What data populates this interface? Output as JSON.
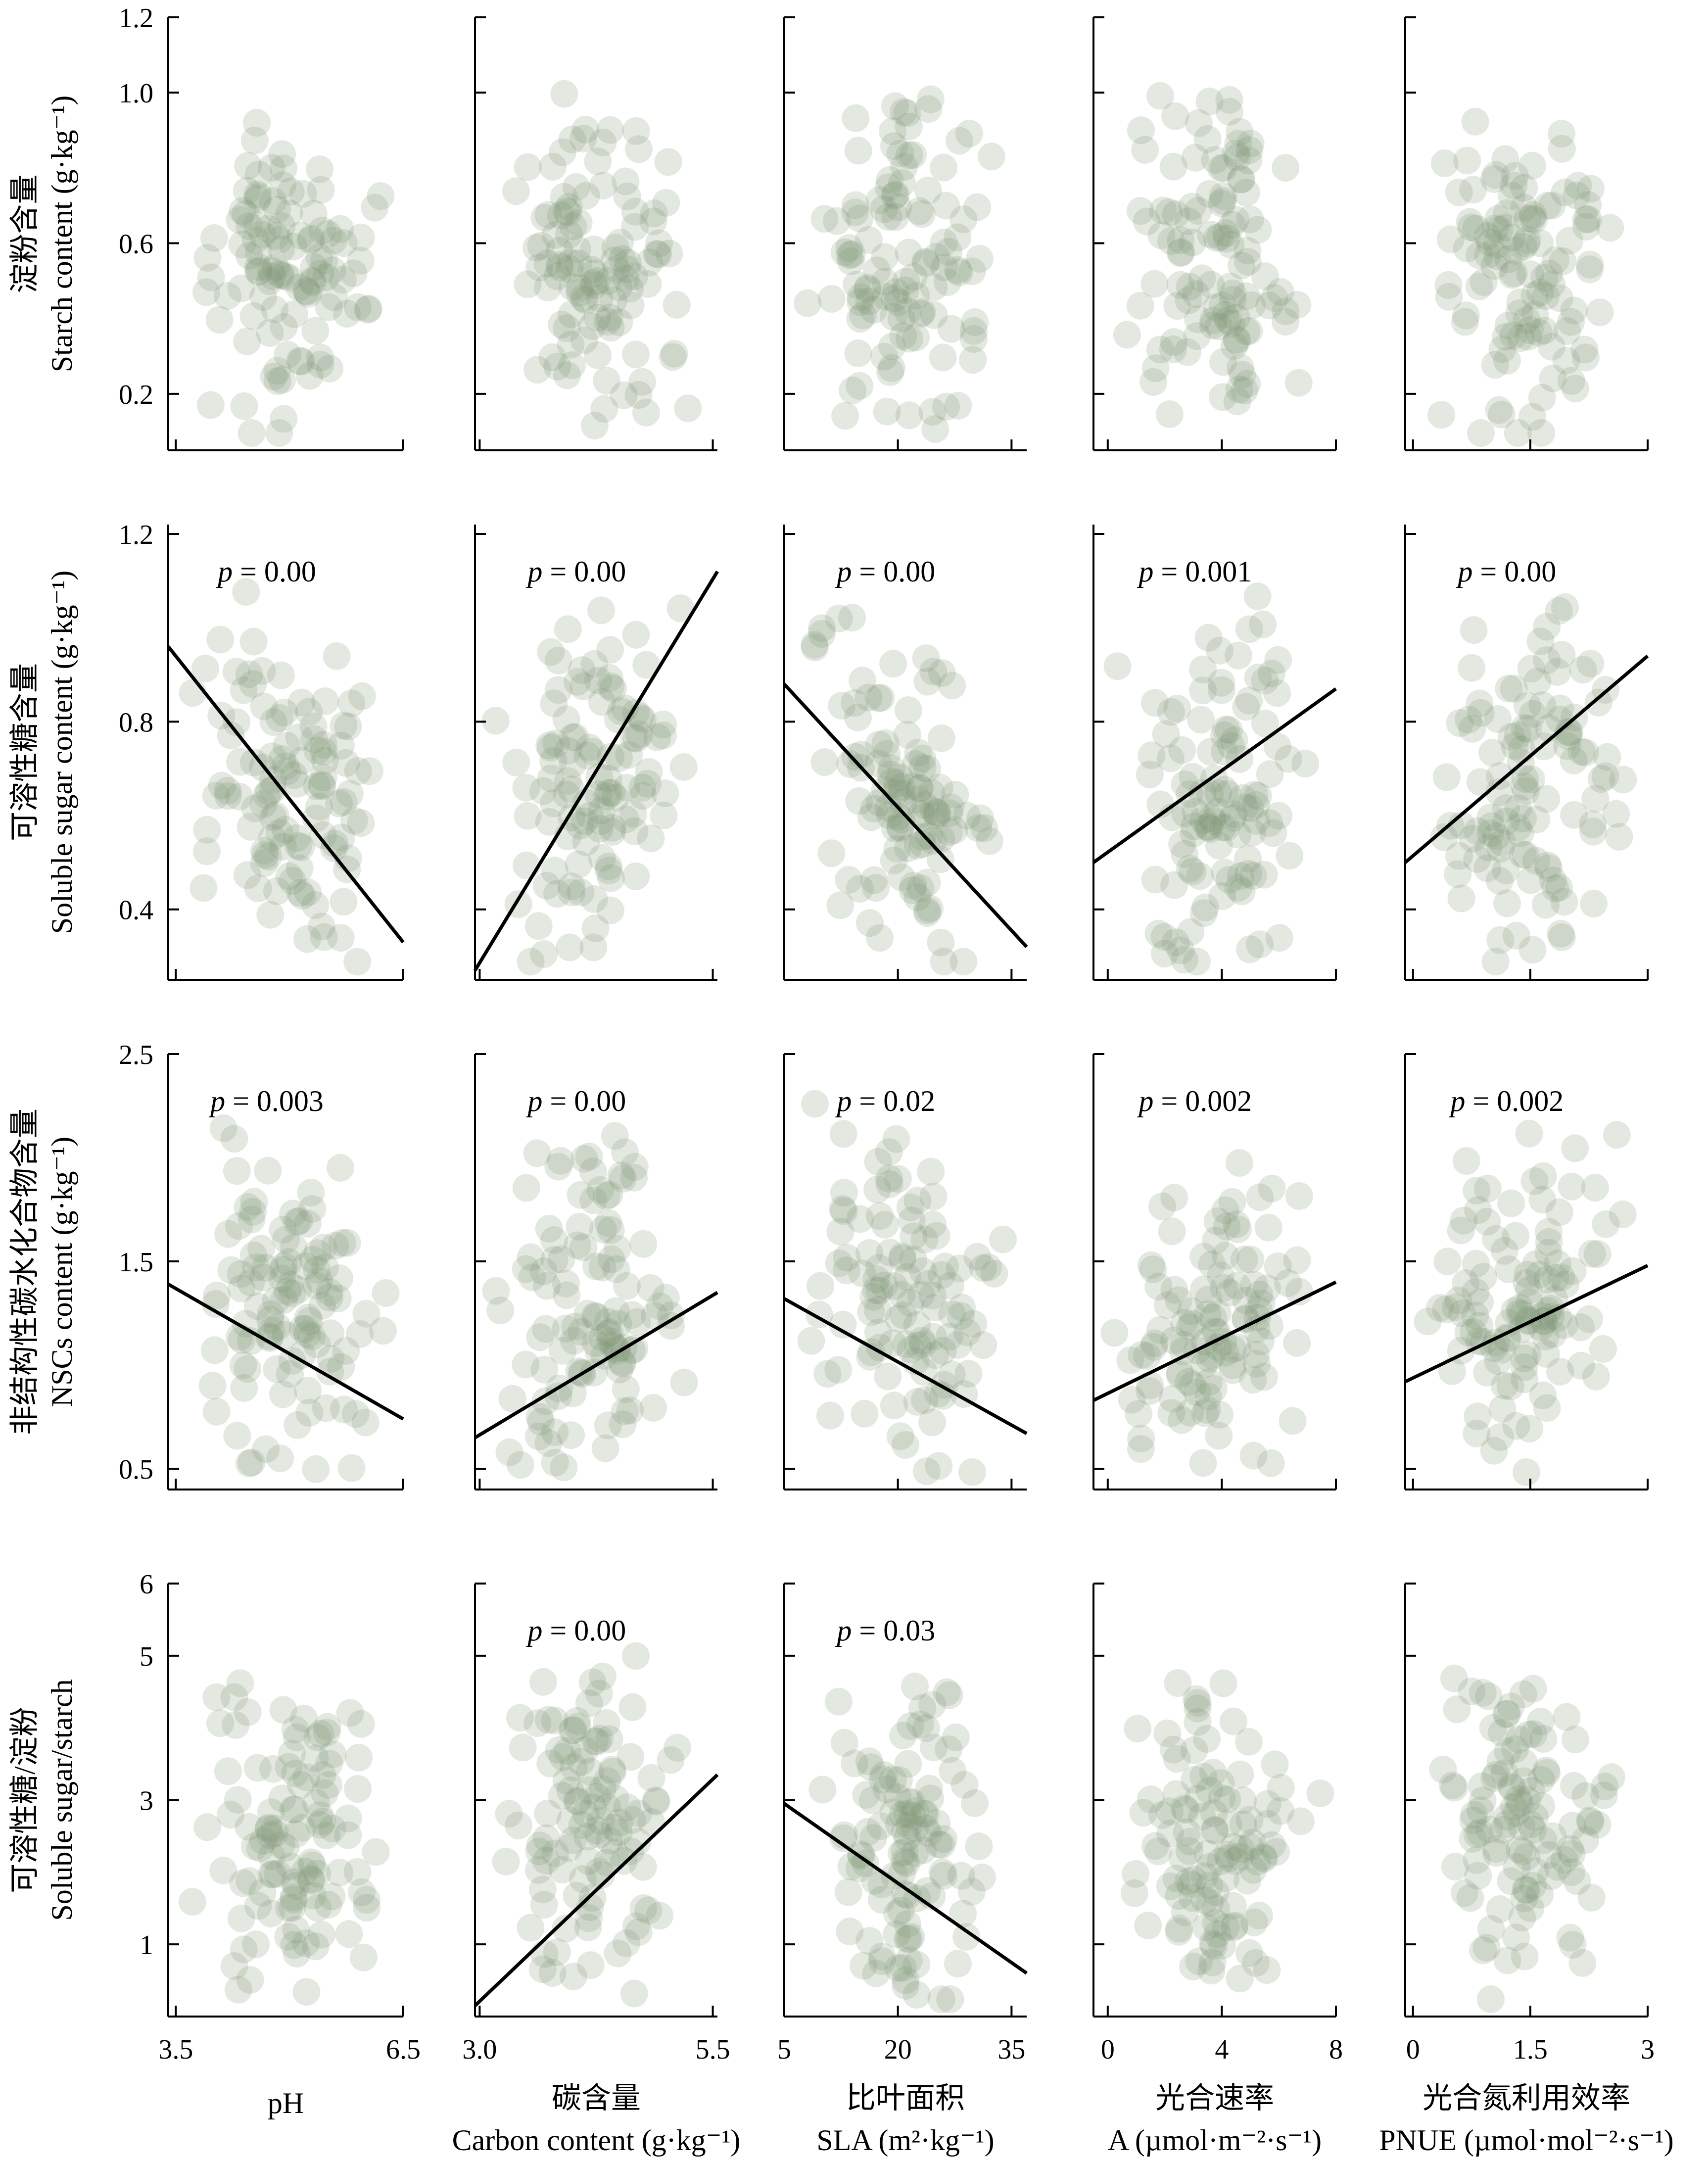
{
  "columns": [
    {
      "xlabel_cn": "",
      "xlabel_en": "pH",
      "xticks": [
        "3.5",
        "6.5"
      ]
    },
    {
      "xlabel_cn": "碳含量",
      "xlabel_en": "Carbon content (g·kg⁻¹)",
      "xticks": [
        "3.0",
        "5.5"
      ]
    },
    {
      "xlabel_cn": "比叶面积",
      "xlabel_en": "SLA (m²·kg⁻¹)",
      "xticks": [
        "5",
        "20",
        "35"
      ]
    },
    {
      "xlabel_cn": "光合速率",
      "xlabel_en": "A (µmol·m⁻²·s⁻¹)",
      "xticks": [
        "0",
        "4",
        "8"
      ]
    },
    {
      "xlabel_cn": "光合氮利用效率",
      "xlabel_en": "PNUE (µmol·mol⁻²·s⁻¹)",
      "xticks": [
        "0",
        "1.5",
        "3"
      ]
    }
  ],
  "rows": [
    {
      "ylabel_cn": "淀粉含量",
      "ylabel_en": "Starch content (g·kg⁻¹)",
      "yticks": [
        "0.2",
        "0.6",
        "1.0",
        "1.2"
      ]
    },
    {
      "ylabel_cn": "可溶性糖含量",
      "ylabel_en": "Soluble sugar content (g·kg⁻¹)",
      "yticks": [
        "0.4",
        "0.8",
        "1.2"
      ]
    },
    {
      "ylabel_cn": "非结构性碳水化合物含量",
      "ylabel_en": "NSCs content (g·kg⁻¹)",
      "yticks": [
        "0.5",
        "1.5",
        "2.5"
      ]
    },
    {
      "ylabel_cn": "可溶性糖/淀粉",
      "ylabel_en": "Soluble sugar/starch",
      "yticks": [
        "1",
        "3",
        "5",
        "6"
      ]
    }
  ],
  "chart_data": {
    "type": "scatter",
    "layout": "4 rows x 5 columns scatter matrix with linear regression lines",
    "marker_color": "#7f9477",
    "line_color": "#000000",
    "panels": [
      {
        "row": 0,
        "col": 0,
        "xlim": [
          3.4,
          6.5
        ],
        "ylim": [
          0.05,
          1.2
        ],
        "p": "",
        "fit": null,
        "seed": 11
      },
      {
        "row": 0,
        "col": 1,
        "xlim": [
          2.95,
          5.55
        ],
        "ylim": [
          0.05,
          1.2
        ],
        "p": "",
        "fit": null,
        "seed": 12
      },
      {
        "row": 0,
        "col": 2,
        "xlim": [
          5,
          37
        ],
        "ylim": [
          0.05,
          1.2
        ],
        "p": "",
        "fit": null,
        "seed": 13
      },
      {
        "row": 0,
        "col": 3,
        "xlim": [
          -0.5,
          8
        ],
        "ylim": [
          0.05,
          1.2
        ],
        "p": "",
        "fit": null,
        "seed": 14
      },
      {
        "row": 0,
        "col": 4,
        "xlim": [
          -0.1,
          3
        ],
        "ylim": [
          0.05,
          1.2
        ],
        "p": "",
        "fit": null,
        "seed": 15
      },
      {
        "row": 1,
        "col": 0,
        "xlim": [
          3.4,
          6.5
        ],
        "ylim": [
          0.25,
          1.22
        ],
        "p": "= 0.00",
        "fit": [
          [
            3.4,
            0.96
          ],
          [
            6.5,
            0.33
          ]
        ],
        "seed": 21,
        "slope": -1
      },
      {
        "row": 1,
        "col": 1,
        "xlim": [
          2.95,
          5.55
        ],
        "ylim": [
          0.25,
          1.22
        ],
        "p": "= 0.00",
        "fit": [
          [
            2.95,
            0.27
          ],
          [
            5.55,
            1.12
          ]
        ],
        "seed": 22,
        "slope": 1
      },
      {
        "row": 1,
        "col": 2,
        "xlim": [
          5,
          37
        ],
        "ylim": [
          0.25,
          1.22
        ],
        "p": "= 0.00",
        "fit": [
          [
            5,
            0.88
          ],
          [
            37,
            0.32
          ]
        ],
        "seed": 23,
        "slope": -1
      },
      {
        "row": 1,
        "col": 3,
        "xlim": [
          -0.5,
          8
        ],
        "ylim": [
          0.25,
          1.22
        ],
        "p": "= 0.001",
        "fit": [
          [
            -0.5,
            0.5
          ],
          [
            8,
            0.87
          ]
        ],
        "seed": 24,
        "slope": 0.5
      },
      {
        "row": 1,
        "col": 4,
        "xlim": [
          -0.1,
          3
        ],
        "ylim": [
          0.25,
          1.22
        ],
        "p": "= 0.00",
        "fit": [
          [
            -0.1,
            0.5
          ],
          [
            3,
            0.94
          ]
        ],
        "seed": 25,
        "slope": 0.6
      },
      {
        "row": 2,
        "col": 0,
        "xlim": [
          3.4,
          6.5
        ],
        "ylim": [
          0.4,
          2.5
        ],
        "p": "= 0.003",
        "fit": [
          [
            3.4,
            1.39
          ],
          [
            6.5,
            0.74
          ]
        ],
        "seed": 31,
        "slope": -0.6
      },
      {
        "row": 2,
        "col": 1,
        "xlim": [
          2.95,
          5.55
        ],
        "ylim": [
          0.4,
          2.5
        ],
        "p": "= 0.00",
        "fit": [
          [
            2.95,
            0.65
          ],
          [
            5.55,
            1.35
          ]
        ],
        "seed": 32,
        "slope": 0.6
      },
      {
        "row": 2,
        "col": 2,
        "xlim": [
          5,
          37
        ],
        "ylim": [
          0.4,
          2.5
        ],
        "p": "= 0.02",
        "fit": [
          [
            5,
            1.32
          ],
          [
            37,
            0.67
          ]
        ],
        "seed": 33,
        "slope": -0.6
      },
      {
        "row": 2,
        "col": 3,
        "xlim": [
          -0.5,
          8
        ],
        "ylim": [
          0.4,
          2.5
        ],
        "p": "= 0.002",
        "fit": [
          [
            -0.5,
            0.83
          ],
          [
            8,
            1.4
          ]
        ],
        "seed": 34,
        "slope": 0.5
      },
      {
        "row": 2,
        "col": 4,
        "xlim": [
          -0.1,
          3
        ],
        "ylim": [
          0.4,
          2.5
        ],
        "p": "= 0.002",
        "fit": [
          [
            -0.1,
            0.92
          ],
          [
            3,
            1.48
          ]
        ],
        "seed": 35,
        "slope": 0.5
      },
      {
        "row": 3,
        "col": 0,
        "xlim": [
          3.4,
          6.5
        ],
        "ylim": [
          0,
          6
        ],
        "p": "",
        "fit": null,
        "seed": 41
      },
      {
        "row": 3,
        "col": 1,
        "xlim": [
          2.95,
          5.55
        ],
        "ylim": [
          0,
          6
        ],
        "p": "= 0.00",
        "fit": [
          [
            2.95,
            0.15
          ],
          [
            5.55,
            3.35
          ]
        ],
        "seed": 42,
        "slope": 0.7
      },
      {
        "row": 3,
        "col": 2,
        "xlim": [
          5,
          37
        ],
        "ylim": [
          0,
          6
        ],
        "p": "= 0.03",
        "fit": [
          [
            5,
            2.95
          ],
          [
            37,
            0.6
          ]
        ],
        "seed": 43,
        "slope": -0.5
      },
      {
        "row": 3,
        "col": 3,
        "xlim": [
          -0.5,
          8
        ],
        "ylim": [
          0,
          6
        ],
        "p": "",
        "fit": null,
        "seed": 44
      },
      {
        "row": 3,
        "col": 4,
        "xlim": [
          -0.1,
          3
        ],
        "ylim": [
          0,
          6
        ],
        "p": "",
        "fit": null,
        "seed": 45
      }
    ]
  }
}
